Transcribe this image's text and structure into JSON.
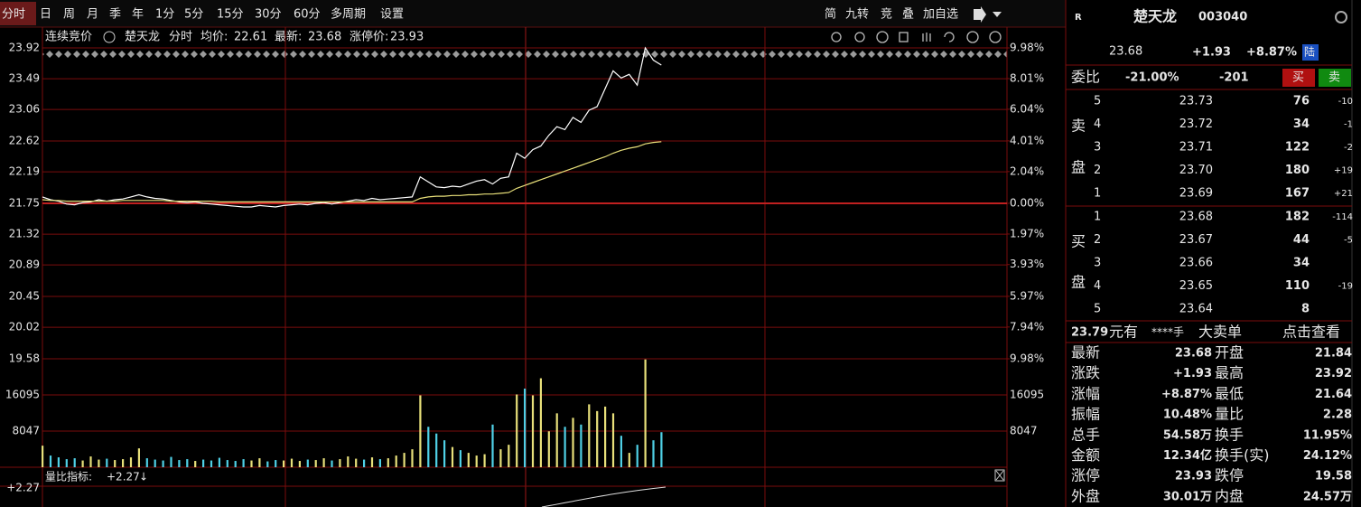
{
  "toolbar": {
    "tabs": [
      "分时",
      "日",
      "周",
      "月",
      "季",
      "年",
      "1分",
      "5分",
      "15分",
      "30分",
      "60分",
      "多周期",
      "设置"
    ],
    "tools": [
      "简",
      "九转",
      "竞",
      "叠",
      "加自选"
    ]
  },
  "info": {
    "mode": "连续竞价",
    "name": "楚天龙",
    "view": "分时",
    "avg_label": "均价:",
    "avg": "22.61",
    "last_label": "最新:",
    "last": "23.68",
    "limit_label": "涨停价:",
    "limit": "23.93"
  },
  "chart_data": [
    {
      "type": "line",
      "ylim": [
        19.58,
        23.92
      ],
      "yticks": [
        23.92,
        23.49,
        23.06,
        22.62,
        22.19,
        21.75,
        21.32,
        20.89,
        20.45,
        20.02,
        19.58
      ],
      "y2lim": [
        -9.98,
        9.98
      ],
      "y2ticks": [
        {
          "value": 9.98,
          "label": "9.98%"
        },
        {
          "value": 8.01,
          "label": "8.01%"
        },
        {
          "value": 6.04,
          "label": "6.04%"
        },
        {
          "value": 4.01,
          "label": "4.01%"
        },
        {
          "value": 2.04,
          "label": "2.04%"
        },
        {
          "value": 0,
          "label": "0.00%"
        },
        {
          "value": -1.97,
          "label": "1.97%"
        },
        {
          "value": -3.93,
          "label": "3.93%"
        },
        {
          "value": -5.97,
          "label": "5.97%"
        },
        {
          "value": -7.94,
          "label": "7.94%"
        },
        {
          "value": -9.98,
          "label": "9.98%"
        }
      ],
      "grid": true,
      "grid_color": "#7a0c0c",
      "up_color": "#ff4040",
      "down_color": "#30d030",
      "flat_color": "#e6e6e6",
      "series": [
        {
          "color": "#ffffff",
          "values": [
            21.84,
            21.8,
            21.78,
            21.74,
            21.73,
            21.76,
            21.77,
            21.8,
            21.78,
            21.8,
            21.81,
            21.84,
            21.87,
            21.84,
            21.82,
            21.81,
            21.79,
            21.77,
            21.76,
            21.77,
            21.75,
            21.74,
            21.73,
            21.72,
            21.71,
            21.7,
            21.7,
            21.72,
            21.71,
            21.7,
            21.72,
            21.73,
            21.74,
            21.73,
            21.75,
            21.76,
            21.74,
            21.76,
            21.78,
            21.8,
            21.79,
            21.82,
            21.8,
            21.81,
            21.82,
            21.83,
            21.84,
            22.12,
            22.05,
            21.98,
            21.97,
            21.99,
            21.98,
            22.02,
            22.06,
            22.08,
            22.02,
            22.1,
            22.12,
            22.45,
            22.38,
            22.5,
            22.55,
            22.7,
            22.82,
            22.78,
            22.95,
            22.88,
            23.05,
            23.1,
            23.35,
            23.6,
            23.5,
            23.55,
            23.4,
            23.92,
            23.75,
            23.68
          ]
        },
        {
          "color": "#e8e07a",
          "values": [
            21.8,
            21.79,
            21.79,
            21.78,
            21.78,
            21.78,
            21.78,
            21.78,
            21.78,
            21.78,
            21.79,
            21.79,
            21.79,
            21.79,
            21.79,
            21.79,
            21.78,
            21.78,
            21.78,
            21.78,
            21.78,
            21.78,
            21.77,
            21.77,
            21.77,
            21.77,
            21.77,
            21.77,
            21.77,
            21.77,
            21.77,
            21.77,
            21.77,
            21.77,
            21.77,
            21.77,
            21.77,
            21.77,
            21.77,
            21.77,
            21.77,
            21.77,
            21.77,
            21.77,
            21.77,
            21.77,
            21.77,
            21.82,
            21.84,
            21.85,
            21.85,
            21.86,
            21.86,
            21.87,
            21.87,
            21.88,
            21.88,
            21.89,
            21.9,
            21.96,
            22.0,
            22.04,
            22.08,
            22.12,
            22.16,
            22.2,
            22.24,
            22.28,
            22.32,
            22.36,
            22.4,
            22.45,
            22.49,
            22.52,
            22.54,
            22.58,
            22.6,
            22.61
          ]
        }
      ]
    },
    {
      "type": "bar",
      "ylim": [
        0,
        24142
      ],
      "yticks": [
        8047,
        16095
      ],
      "up_color": "#e8e07a",
      "down_color": "#4fd0e6",
      "tick_color": "#4fd0e6",
      "values": [
        4800,
        2600,
        2200,
        1800,
        2000,
        1500,
        2400,
        1700,
        1900,
        1600,
        1800,
        2200,
        4200,
        2000,
        1700,
        1500,
        2300,
        1600,
        1800,
        1400,
        1700,
        1500,
        2100,
        1600,
        1400,
        1800,
        1500,
        2000,
        1300,
        1600,
        1500,
        1900,
        1400,
        1700,
        1600,
        2000,
        1500,
        1800,
        2400,
        1900,
        1700,
        2200,
        1800,
        2000,
        2600,
        3200,
        4000,
        16000,
        9000,
        7500,
        6000,
        4500,
        3800,
        3200,
        2600,
        2900,
        9500,
        4000,
        5000,
        16200,
        17500,
        16000,
        19800,
        8000,
        12000,
        9000,
        11000,
        9500,
        14000,
        12500,
        13500,
        12000,
        7000,
        3200,
        5000,
        24000,
        6000,
        7800
      ]
    }
  ],
  "indicator": {
    "label": "量比指标:",
    "value": "+2.27",
    "arrow": "↓",
    "tick": "+2.27"
  },
  "quote": {
    "badge": "R",
    "name": "楚天龙",
    "code": "003040",
    "price": "23.68",
    "change": "+1.93",
    "pct": "+8.87%",
    "tag": "陆"
  },
  "ratio": {
    "label": "委比",
    "pct": "-21.00%",
    "diff": "-201",
    "buy": "买",
    "sell": "卖"
  },
  "asks": {
    "label": [
      "卖",
      "盘"
    ],
    "rows": [
      {
        "level": "5",
        "price": "23.73",
        "vol": "76",
        "chg": "-10"
      },
      {
        "level": "4",
        "price": "23.72",
        "vol": "34",
        "chg": "-1"
      },
      {
        "level": "3",
        "price": "23.71",
        "vol": "122",
        "chg": "-2"
      },
      {
        "level": "2",
        "price": "23.70",
        "vol": "180",
        "chg": "+19"
      },
      {
        "level": "1",
        "price": "23.69",
        "vol": "167",
        "chg": "+21"
      }
    ]
  },
  "bids": {
    "label": [
      "买",
      "盘"
    ],
    "rows": [
      {
        "level": "1",
        "price": "23.68",
        "vol": "182",
        "chg": "-114"
      },
      {
        "level": "2",
        "price": "23.67",
        "vol": "44",
        "chg": "-5"
      },
      {
        "level": "3",
        "price": "23.66",
        "vol": "34"
      },
      {
        "level": "4",
        "price": "23.65",
        "vol": "110",
        "chg": "-19"
      },
      {
        "level": "5",
        "price": "23.64",
        "vol": "8"
      }
    ]
  },
  "big_order": {
    "price": "23.79",
    "unit": "元有",
    "vol": "****手",
    "label": "大卖单",
    "link": "点击查看"
  },
  "stats": [
    {
      "k1": "最新",
      "v1": "23.68",
      "c1": "#ff4040",
      "k2": "开盘",
      "v2": "21.84",
      "c2": "#ff4040"
    },
    {
      "k1": "涨跌",
      "v1": "+1.93",
      "c1": "#ff4040",
      "k2": "最高",
      "v2": "23.92",
      "c2": "#ff4040"
    },
    {
      "k1": "涨幅",
      "v1": "+8.87%",
      "c1": "#ff4040",
      "k2": "最低",
      "v2": "21.64",
      "c2": "#30d030"
    },
    {
      "k1": "振幅",
      "v1": "10.48%",
      "c1": "#4fd0e6",
      "k2": "量比",
      "v2": "2.28",
      "c2": "#ff4040"
    },
    {
      "k1": "总手",
      "v1": "54.58万",
      "c1": "#4fd0e6",
      "k2": "换手",
      "v2": "11.95%",
      "c2": "#4fd0e6"
    },
    {
      "k1": "金额",
      "v1": "12.34亿",
      "c1": "#4fd0e6",
      "k2": "换手(实)",
      "v2": "24.12%",
      "c2": "#4fd0e6"
    },
    {
      "k1": "涨停",
      "v1": "23.93",
      "c1": "#ff4040",
      "k2": "跌停",
      "v2": "19.58",
      "c2": "#30d030"
    },
    {
      "k1": "外盘",
      "v1": "30.01万",
      "c1": "#ff4040",
      "k2": "内盘",
      "v2": "24.57万",
      "c2": "#30d030"
    }
  ]
}
